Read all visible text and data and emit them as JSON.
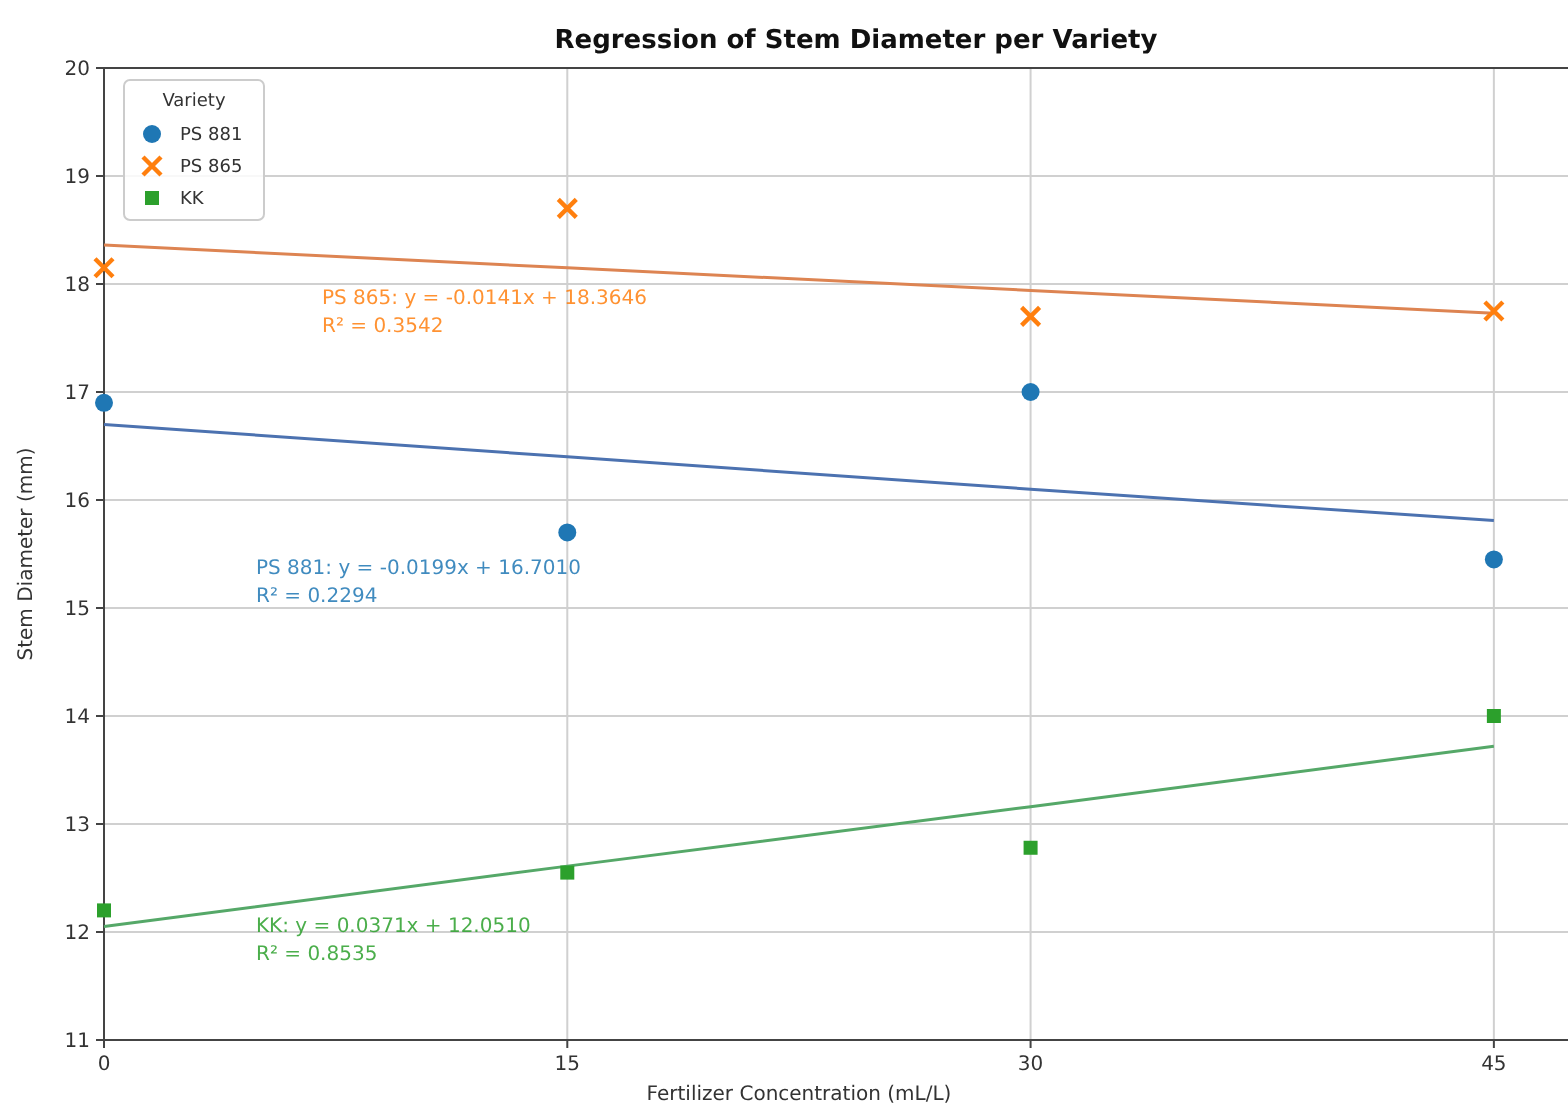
{
  "chart_data": {
    "type": "scatter",
    "title": "Regression of Stem Diameter per Variety",
    "xlabel": "Fertilizer Concentration (mL/L)",
    "ylabel": "Stem Diameter (mm)",
    "legend_title": "Variety",
    "x": [
      0,
      15,
      30,
      45
    ],
    "series": [
      {
        "name": "PS 881",
        "color": "#1f77b4",
        "marker": "circle",
        "values": [
          16.9,
          15.7,
          17.0,
          15.45
        ]
      },
      {
        "name": "PS 865",
        "color": "#ff7f0e",
        "marker": "cross",
        "values": [
          18.15,
          18.7,
          17.7,
          17.75
        ]
      },
      {
        "name": "KK",
        "color": "#2ca02c",
        "marker": "square",
        "values": [
          12.2,
          12.55,
          12.78,
          14.0
        ]
      },
      {
        "type": "line",
        "color": "#4c72b0",
        "x": [
          0,
          15,
          30,
          45
        ],
        "values": [
          16.7,
          16.4,
          16.1,
          15.81
        ]
      },
      {
        "type": "line",
        "color": "#dd8452",
        "x": [
          0,
          15,
          30,
          45
        ],
        "values": [
          18.36,
          18.15,
          17.94,
          17.73
        ]
      },
      {
        "type": "line",
        "color": "#55a868",
        "x": [
          0,
          15,
          30,
          45
        ],
        "values": [
          12.05,
          12.61,
          13.16,
          13.72
        ]
      }
    ],
    "annotations": [
      "PS 881: y = -0.0199x + 16.7010\nR² = 0.2294",
      "PS 865: y = -0.0141x + 18.3646\nR² = 0.3542",
      "KK: y = 0.0371x + 12.0510\nR² = 0.8535"
    ],
    "xlim": [
      0,
      47.4
    ],
    "ylim": [
      11,
      20
    ],
    "xticks": [
      0,
      15,
      30,
      45
    ],
    "yticks": [
      11,
      12,
      13,
      14,
      15,
      16,
      17,
      18,
      19,
      20
    ],
    "grid": true,
    "legend": "top left"
  }
}
